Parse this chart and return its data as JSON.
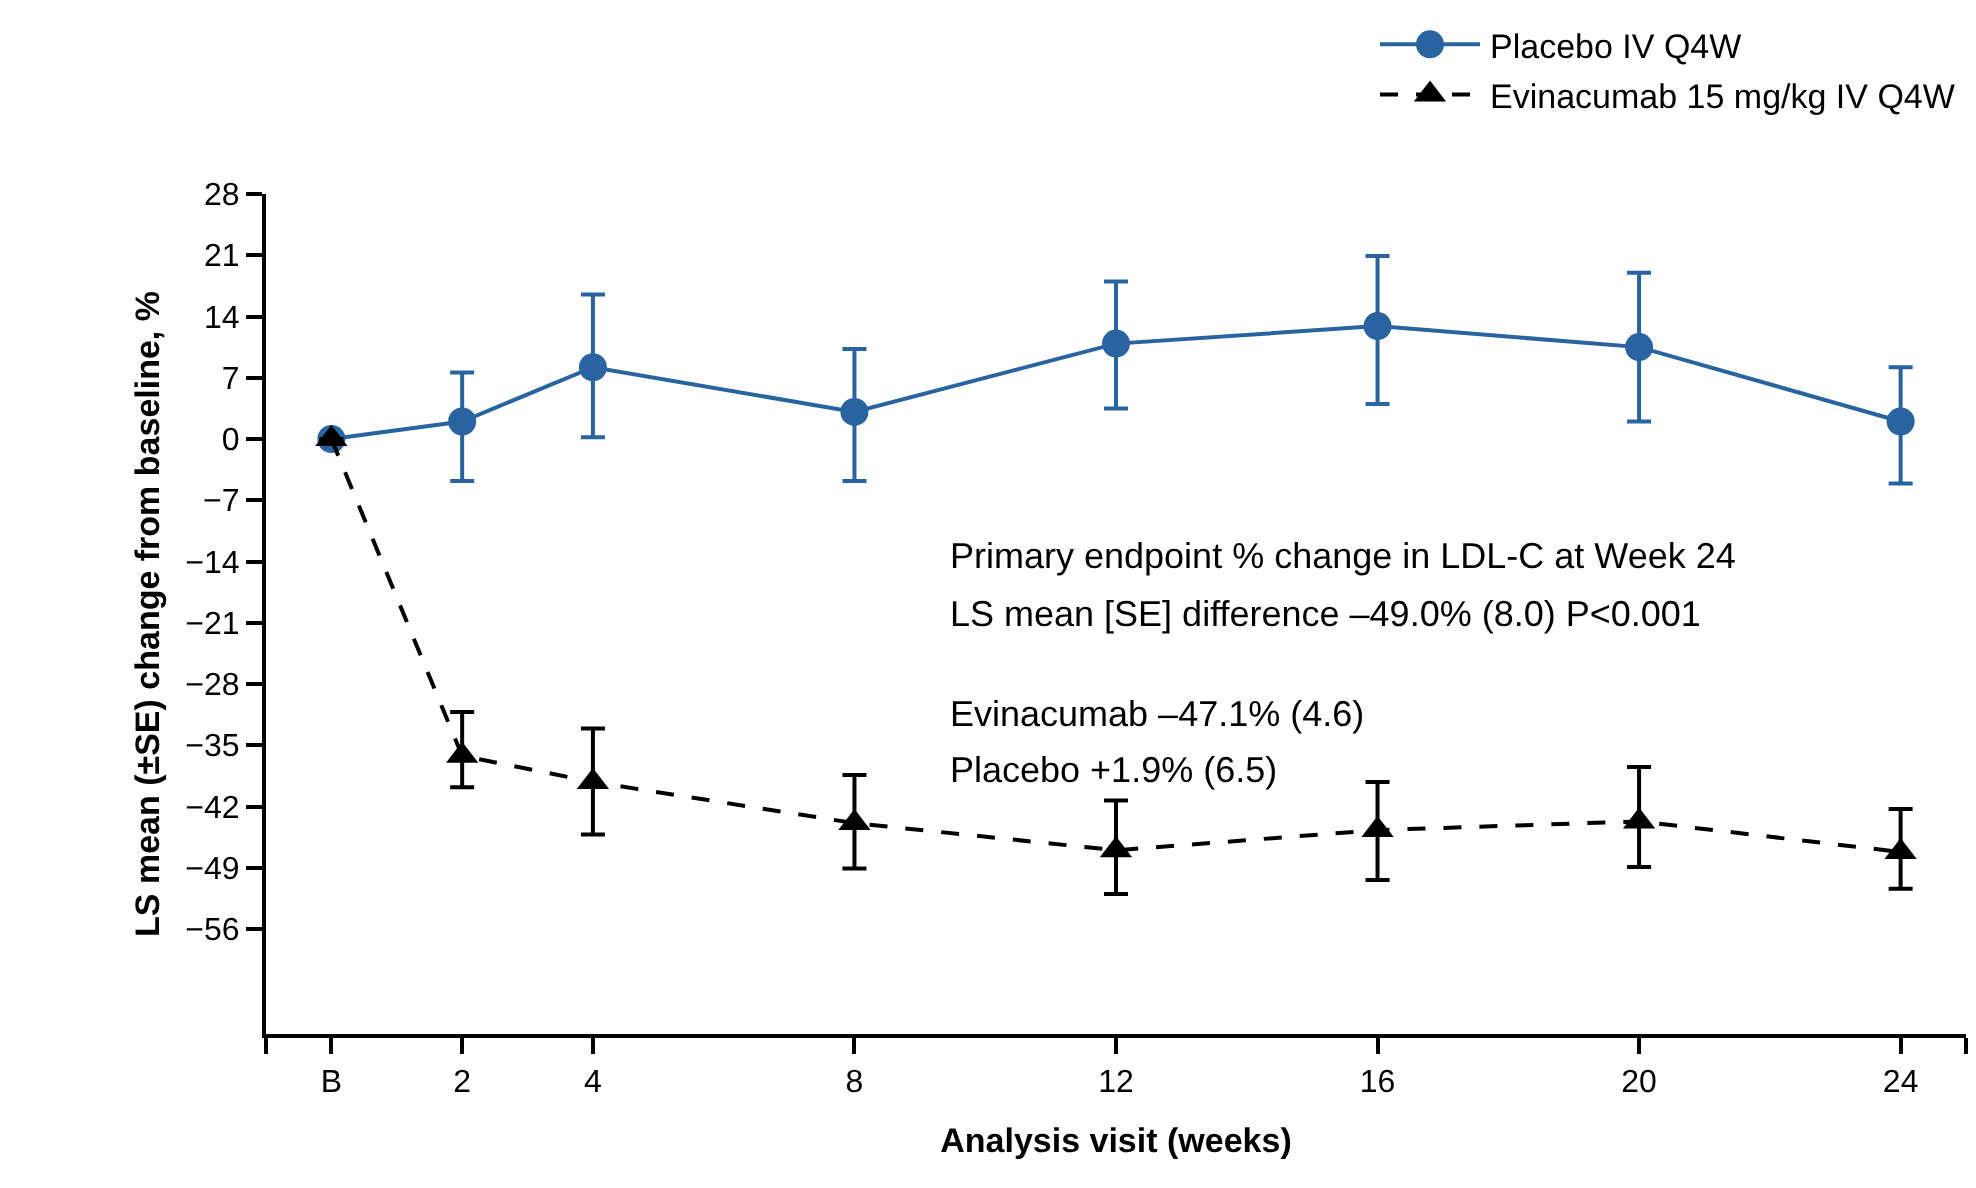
{
  "chart_data": {
    "type": "line",
    "xlabel": "Analysis visit (weeks)",
    "ylabel": "LS mean (±SE) change from baseline, %",
    "x": [
      0,
      2,
      4,
      8,
      12,
      16,
      20,
      24
    ],
    "series": [
      {
        "name": "Placebo IV Q4W",
        "color": "#2a64a0",
        "marker": "circle",
        "line_style": "solid",
        "values": [
          0,
          2.0,
          8.2,
          3.1,
          10.9,
          12.9,
          10.5,
          2.0
        ],
        "errors": [
          null,
          [
            -4.8,
            7.6
          ],
          [
            0.2,
            16.5
          ],
          [
            -4.8,
            10.3
          ],
          [
            3.5,
            18.0
          ],
          [
            4.0,
            20.9
          ],
          [
            2.0,
            19.0
          ],
          [
            -5.1,
            8.2
          ]
        ]
      },
      {
        "name": "Evinacumab 15 mg/kg IV Q4W",
        "color": "#000000",
        "marker": "triangle",
        "line_style": "dashed",
        "values": [
          0,
          -36.2,
          -39.2,
          -43.9,
          -47.0,
          -44.7,
          -43.7,
          -47.2
        ],
        "errors": [
          null,
          [
            -39.8,
            -31.2
          ],
          [
            -45.2,
            -33.1
          ],
          [
            -49.1,
            -38.4
          ],
          [
            -52.0,
            -41.3
          ],
          [
            -50.4,
            -39.2
          ],
          [
            -48.9,
            -37.5
          ],
          [
            -51.4,
            -42.3
          ]
        ]
      }
    ],
    "xlim": [
      -1,
      25
    ],
    "xticks": [
      {
        "value": -1,
        "label": null
      },
      {
        "value": 0,
        "label": "B"
      },
      2,
      4,
      8,
      12,
      16,
      20,
      24,
      {
        "value": 25,
        "label": null
      }
    ],
    "ylim": [
      -68,
      28
    ],
    "yticks": [
      28,
      21,
      14,
      7,
      0,
      -7,
      -14,
      -21,
      -28,
      -35,
      -42,
      -49,
      -56
    ],
    "annotations": [
      "Primary endpoint % change in LDL-C at Week 24",
      "LS mean [SE] difference –49.0% (8.0) P<0.001",
      "Evinacumab –47.1% (4.6)",
      "Placebo +1.9% (6.5)"
    ],
    "legend": "top right"
  }
}
